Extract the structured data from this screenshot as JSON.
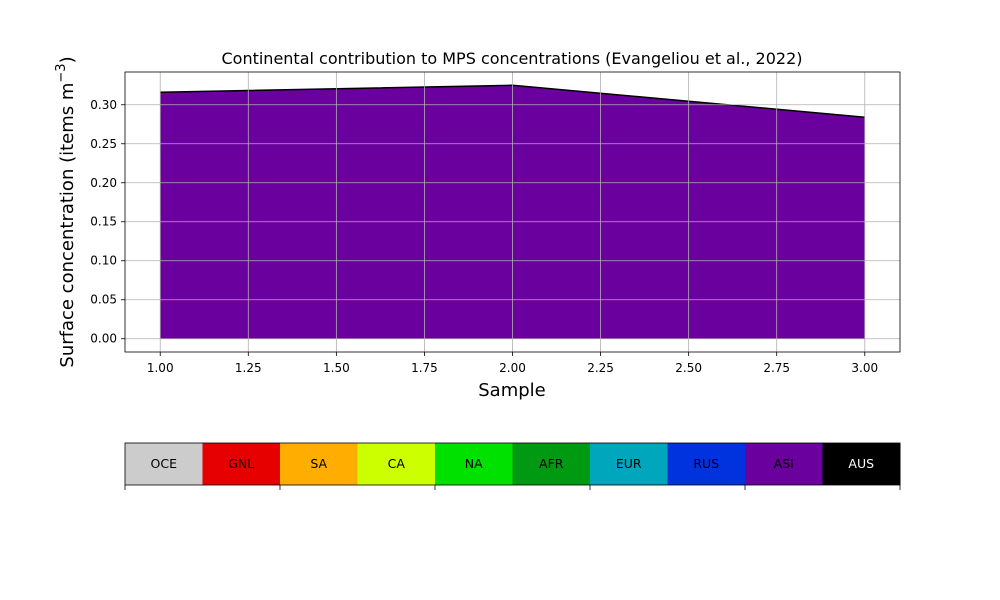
{
  "chart_data": {
    "type": "area",
    "title": "Continental contribution to MPS concentrations (Evangeliou et al., 2022)",
    "xlabel": "Sample",
    "ylabel": "Surface concentration (items m",
    "ylabel_unit_exponent": "−3",
    "ylabel_suffix": ")",
    "xlim": [
      0.9,
      3.1
    ],
    "ylim": [
      -0.017,
      0.342
    ],
    "grid": true,
    "x_ticks": [
      1.0,
      1.25,
      1.5,
      1.75,
      2.0,
      2.25,
      2.5,
      2.75,
      3.0
    ],
    "x_tick_labels": [
      "1.00",
      "1.25",
      "1.50",
      "1.75",
      "2.00",
      "2.25",
      "2.50",
      "2.75",
      "3.00"
    ],
    "y_ticks": [
      0.0,
      0.05,
      0.1,
      0.15,
      0.2,
      0.25,
      0.3
    ],
    "y_tick_labels": [
      "0.00",
      "0.05",
      "0.10",
      "0.15",
      "0.20",
      "0.25",
      "0.30"
    ],
    "series": [
      {
        "name": "ASI",
        "color": "#6a009e",
        "x": [
          1,
          2,
          3
        ],
        "y": [
          0.316,
          0.325,
          0.284
        ]
      }
    ],
    "legend_bar": {
      "position": "below",
      "categories": [
        {
          "label": "OCE",
          "color": "#cccccc"
        },
        {
          "label": "GNL",
          "color": "#e60000"
        },
        {
          "label": "SA",
          "color": "#ffad00"
        },
        {
          "label": "CA",
          "color": "#ccff00"
        },
        {
          "label": "NA",
          "color": "#00e100"
        },
        {
          "label": "AFR",
          "color": "#009a12"
        },
        {
          "label": "EUR",
          "color": "#00a6bb"
        },
        {
          "label": "RUS",
          "color": "#0033dd"
        },
        {
          "label": "ASI",
          "color": "#6a009e"
        },
        {
          "label": "AUS",
          "color": "#000000"
        }
      ]
    }
  }
}
